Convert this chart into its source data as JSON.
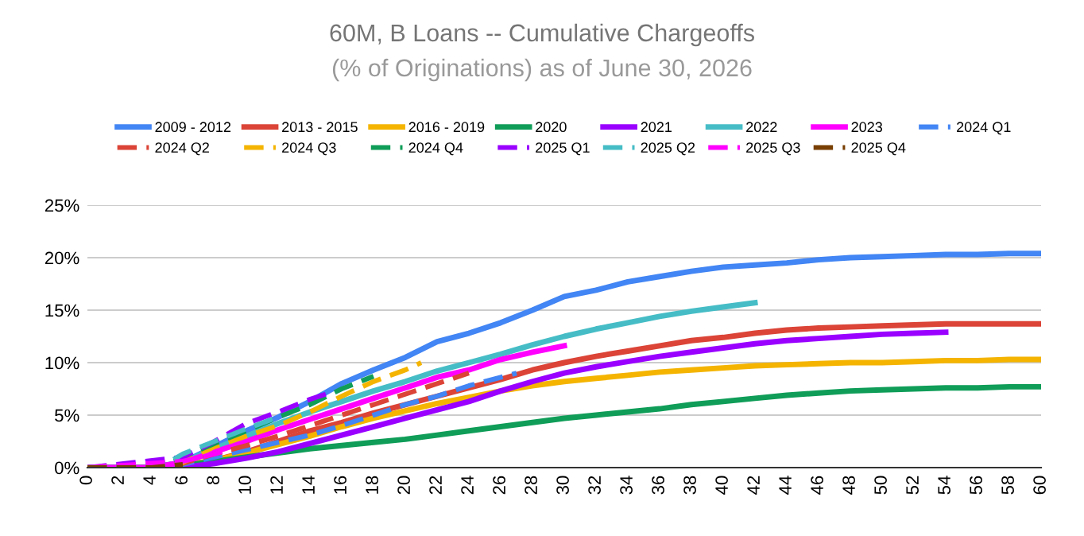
{
  "chart_data": {
    "type": "line",
    "title": "60M, B Loans -- Cumulative Chargeoffs",
    "subtitle": "(% of Originations) as of June 30, 2026",
    "xlim": [
      0,
      60
    ],
    "xticks": [
      0,
      2,
      4,
      6,
      8,
      10,
      12,
      14,
      16,
      18,
      20,
      22,
      24,
      26,
      28,
      30,
      32,
      34,
      36,
      38,
      40,
      42,
      44,
      46,
      48,
      50,
      52,
      54,
      56,
      58,
      60
    ],
    "ylim": [
      0,
      25
    ],
    "yticks": [
      {
        "value": 0,
        "label": "0%"
      },
      {
        "value": 5,
        "label": "5%"
      },
      {
        "value": 10,
        "label": "10%"
      },
      {
        "value": 15,
        "label": "15%"
      },
      {
        "value": 20,
        "label": "20%"
      },
      {
        "value": 25,
        "label": "25%"
      }
    ],
    "grid": "y",
    "legend": "top",
    "marker": "none",
    "series": [
      {
        "name": "2009 - 2012",
        "color": "#4285f4",
        "line_style": "solid",
        "x": [
          0,
          4,
          6,
          8,
          10,
          12,
          14,
          16,
          18,
          20,
          22,
          24,
          26,
          28,
          30,
          32,
          34,
          36,
          38,
          40,
          42,
          44,
          46,
          48,
          50,
          52,
          54,
          56,
          58,
          60
        ],
        "values": [
          0,
          0,
          0.5,
          2,
          3.5,
          4.8,
          6.3,
          8,
          9.3,
          10.5,
          12,
          12.8,
          13.8,
          15,
          16.3,
          16.9,
          17.7,
          18.2,
          18.7,
          19.1,
          19.3,
          19.5,
          19.8,
          20,
          20.1,
          20.2,
          20.3,
          20.3,
          20.4,
          20.4
        ]
      },
      {
        "name": "2013 - 2015",
        "color": "#db4437",
        "line_style": "solid",
        "x": [
          0,
          4,
          6,
          8,
          10,
          12,
          14,
          16,
          18,
          20,
          22,
          24,
          26,
          28,
          30,
          32,
          34,
          36,
          38,
          40,
          42,
          44,
          46,
          48,
          50,
          52,
          54,
          56,
          58,
          60
        ],
        "values": [
          0,
          0,
          0.2,
          0.7,
          1.5,
          2.5,
          3.5,
          4.3,
          5.2,
          6,
          6.8,
          7.6,
          8.4,
          9.3,
          10,
          10.6,
          11.1,
          11.6,
          12.1,
          12.4,
          12.8,
          13.1,
          13.3,
          13.4,
          13.5,
          13.6,
          13.7,
          13.7,
          13.7,
          13.7
        ]
      },
      {
        "name": "2016 - 2019",
        "color": "#f4b400",
        "line_style": "solid",
        "x": [
          0,
          4,
          6,
          8,
          10,
          12,
          14,
          16,
          18,
          20,
          22,
          24,
          26,
          28,
          30,
          32,
          34,
          36,
          38,
          40,
          42,
          44,
          46,
          48,
          50,
          52,
          54,
          56,
          58,
          60
        ],
        "values": [
          0,
          0,
          0.2,
          0.7,
          1.4,
          2.2,
          3,
          3.9,
          4.7,
          5.4,
          6.1,
          6.7,
          7.3,
          7.8,
          8.2,
          8.5,
          8.8,
          9.1,
          9.3,
          9.5,
          9.7,
          9.8,
          9.9,
          10,
          10,
          10.1,
          10.2,
          10.2,
          10.3,
          10.3
        ]
      },
      {
        "name": "2020",
        "color": "#0f9d58",
        "line_style": "solid",
        "x": [
          0,
          4,
          6,
          8,
          10,
          12,
          14,
          16,
          18,
          20,
          22,
          24,
          26,
          28,
          30,
          32,
          34,
          36,
          38,
          40,
          42,
          44,
          46,
          48,
          50,
          52,
          54,
          56,
          58,
          60
        ],
        "values": [
          0,
          0,
          0.2,
          0.6,
          1,
          1.4,
          1.8,
          2.1,
          2.4,
          2.7,
          3.1,
          3.5,
          3.9,
          4.3,
          4.7,
          5,
          5.3,
          5.6,
          6,
          6.3,
          6.6,
          6.9,
          7.1,
          7.3,
          7.4,
          7.5,
          7.6,
          7.6,
          7.7,
          7.7
        ]
      },
      {
        "name": "2021",
        "color": "#9900ff",
        "line_style": "solid",
        "x": [
          0,
          6,
          8,
          10,
          12,
          14,
          16,
          18,
          20,
          22,
          24,
          26,
          28,
          30,
          32,
          34,
          36,
          38,
          40,
          42,
          44,
          46,
          48,
          50,
          52,
          54
        ],
        "values": [
          0,
          0,
          0.4,
          0.9,
          1.5,
          2.3,
          3.1,
          3.9,
          4.7,
          5.5,
          6.3,
          7.3,
          8.2,
          9,
          9.6,
          10.1,
          10.6,
          11,
          11.4,
          11.8,
          12.1,
          12.3,
          12.5,
          12.7,
          12.8,
          12.9
        ]
      },
      {
        "name": "2022",
        "color": "#46bdc6",
        "line_style": "solid",
        "x": [
          0,
          4,
          6,
          8,
          10,
          12,
          14,
          16,
          18,
          20,
          22,
          24,
          26,
          28,
          30,
          32,
          34,
          36,
          38,
          40,
          42
        ],
        "values": [
          0,
          0,
          0.5,
          1.8,
          3,
          4.2,
          5.3,
          6.3,
          7.3,
          8.2,
          9.2,
          10,
          10.8,
          11.7,
          12.5,
          13.2,
          13.8,
          14.4,
          14.9,
          15.3,
          15.7
        ]
      },
      {
        "name": "2023",
        "color": "#ff00ff",
        "line_style": "solid",
        "x": [
          0,
          4,
          6,
          8,
          10,
          12,
          14,
          16,
          18,
          20,
          22,
          24,
          26,
          28,
          30
        ],
        "values": [
          0,
          0,
          0.5,
          1.5,
          2.5,
          3.6,
          4.6,
          5.6,
          6.6,
          7.6,
          8.6,
          9.3,
          10.3,
          11,
          11.6
        ]
      },
      {
        "name": "2024 Q1",
        "color": "#4285f4",
        "line_style": "dashed",
        "x": [
          0,
          6,
          8,
          10,
          12,
          14,
          16,
          18,
          20,
          22,
          24,
          26,
          27
        ],
        "values": [
          0,
          0.3,
          1,
          1.7,
          2.4,
          3.1,
          4,
          5,
          6,
          6.8,
          7.8,
          8.6,
          9
        ]
      },
      {
        "name": "2024 Q2",
        "color": "#db4437",
        "line_style": "dashed",
        "x": [
          0,
          6,
          8,
          10,
          12,
          14,
          16,
          18,
          20,
          22,
          24
        ],
        "values": [
          0,
          0.4,
          1.3,
          2.1,
          3,
          4,
          5,
          6,
          7,
          8,
          9
        ]
      },
      {
        "name": "2024 Q3",
        "color": "#f4b400",
        "line_style": "dashed",
        "x": [
          0,
          6,
          8,
          10,
          12,
          14,
          16,
          18,
          20,
          21
        ],
        "values": [
          0,
          0.5,
          2,
          3,
          4,
          5.3,
          6.8,
          8.2,
          9.3,
          10
        ]
      },
      {
        "name": "2024 Q4",
        "color": "#0f9d58",
        "line_style": "dashed",
        "x": [
          0,
          5,
          6,
          8,
          10,
          12,
          14,
          16,
          18
        ],
        "values": [
          0,
          0.3,
          1,
          2.3,
          3.5,
          4.8,
          6,
          7.5,
          8.7
        ]
      },
      {
        "name": "2025 Q1",
        "color": "#9900ff",
        "line_style": "dashed",
        "x": [
          0,
          6,
          8,
          10,
          12,
          14,
          15
        ],
        "values": [
          0,
          1,
          2.5,
          4.2,
          5.3,
          6.5,
          7
        ]
      },
      {
        "name": "2025 Q2",
        "color": "#46bdc6",
        "line_style": "dashed",
        "x": [
          0,
          5,
          6,
          8,
          10,
          12
        ],
        "values": [
          0,
          0.4,
          1.3,
          2.5,
          3.7,
          4.8
        ]
      },
      {
        "name": "2025 Q3",
        "color": "#ff00ff",
        "line_style": "dashed",
        "x": [
          0,
          6,
          8,
          9
        ],
        "values": [
          0,
          0.6,
          1.3,
          1.8
        ]
      },
      {
        "name": "2025 Q4",
        "color": "#783f04",
        "line_style": "dashed",
        "x": [
          0,
          4,
          6
        ],
        "values": [
          0,
          0,
          0.3
        ]
      }
    ]
  }
}
